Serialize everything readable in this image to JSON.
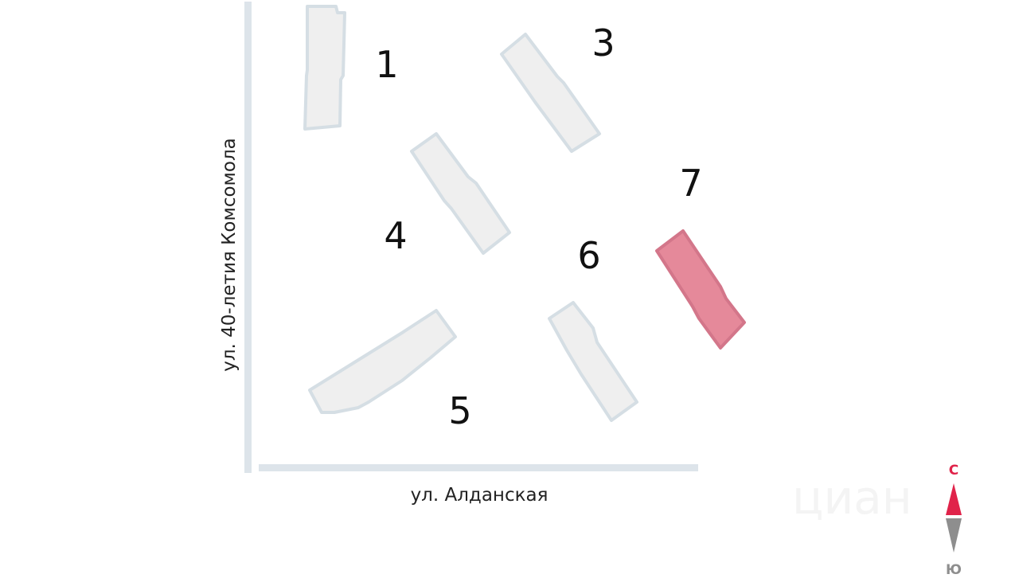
{
  "map": {
    "streets": {
      "vertical": "ул. 40-летия Комсомола",
      "horizontal": "ул. Алданская"
    },
    "buildings": [
      {
        "label": "1",
        "selected": false
      },
      {
        "label": "3",
        "selected": false
      },
      {
        "label": "4",
        "selected": false
      },
      {
        "label": "5",
        "selected": false
      },
      {
        "label": "6",
        "selected": false
      },
      {
        "label": "7",
        "selected": true
      }
    ],
    "compass": {
      "north": "С",
      "south": "Ю",
      "north_color": "#e0234a",
      "south_color": "#8e8e8e"
    },
    "colors": {
      "building": "#efefef",
      "selected_building": "#e5899a",
      "road": "#dde4ea"
    },
    "watermark": "циан"
  }
}
